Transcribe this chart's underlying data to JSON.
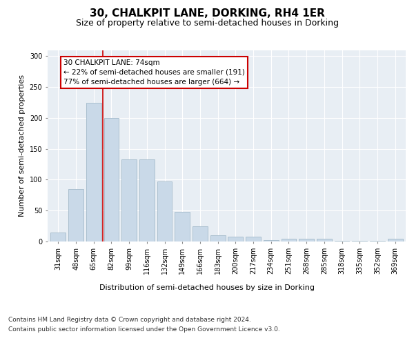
{
  "title": "30, CHALKPIT LANE, DORKING, RH4 1ER",
  "subtitle": "Size of property relative to semi-detached houses in Dorking",
  "xlabel": "Distribution of semi-detached houses by size in Dorking",
  "ylabel": "Number of semi-detached properties",
  "bar_labels": [
    "31sqm",
    "48sqm",
    "65sqm",
    "82sqm",
    "99sqm",
    "116sqm",
    "132sqm",
    "149sqm",
    "166sqm",
    "183sqm",
    "200sqm",
    "217sqm",
    "234sqm",
    "251sqm",
    "268sqm",
    "285sqm",
    "318sqm",
    "335sqm",
    "352sqm",
    "369sqm"
  ],
  "bar_values": [
    15,
    85,
    225,
    200,
    133,
    133,
    97,
    48,
    25,
    10,
    8,
    8,
    2,
    4,
    4,
    4,
    1,
    1,
    1,
    4
  ],
  "bar_color": "#c9d9e8",
  "bar_edge_color": "#aabfcf",
  "vline_x": 2.5,
  "vline_color": "#cc0000",
  "annotation_text": "30 CHALKPIT LANE: 74sqm\n← 22% of semi-detached houses are smaller (191)\n77% of semi-detached houses are larger (664) →",
  "annotation_box_color": "#ffffff",
  "annotation_box_edge_color": "#cc0000",
  "footer_line1": "Contains HM Land Registry data © Crown copyright and database right 2024.",
  "footer_line2": "Contains public sector information licensed under the Open Government Licence v3.0.",
  "ylim": [
    0,
    310
  ],
  "yticks": [
    0,
    50,
    100,
    150,
    200,
    250,
    300
  ],
  "bg_color": "#e8eef4",
  "plot_bg_color": "#e8eef4",
  "title_fontsize": 11,
  "subtitle_fontsize": 9,
  "axis_label_fontsize": 8,
  "tick_fontsize": 7,
  "annotation_fontsize": 7.5,
  "footer_fontsize": 6.5
}
